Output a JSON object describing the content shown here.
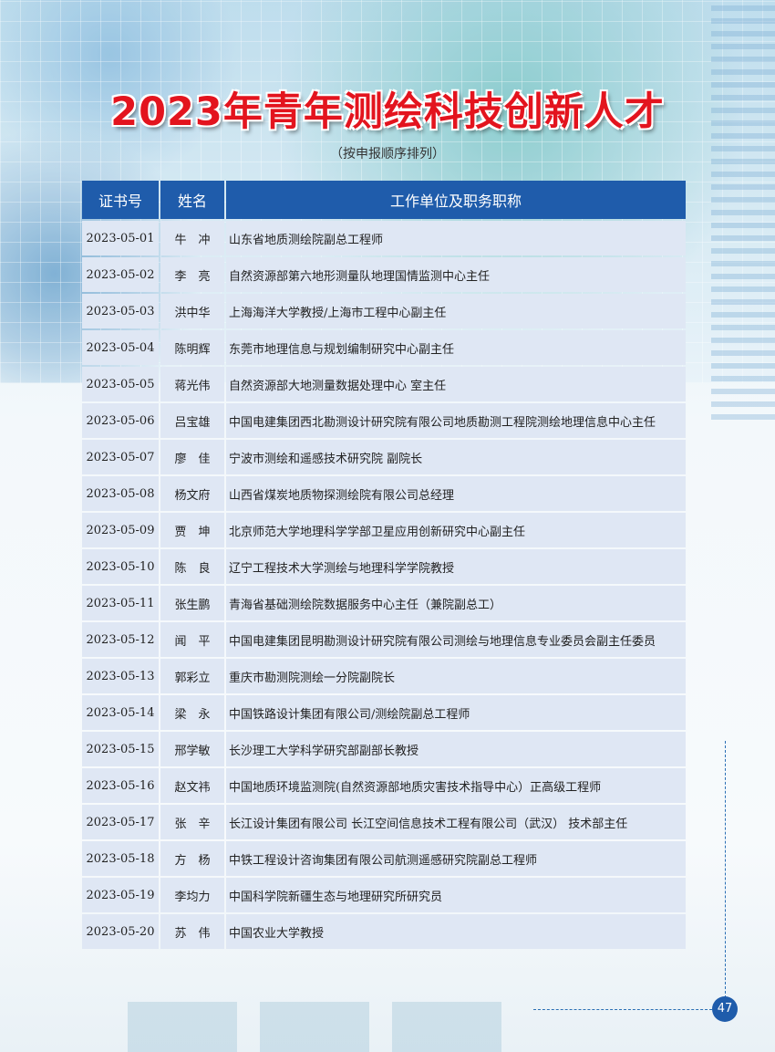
{
  "title": "2023年青年测绘科技创新人才",
  "subtitle": "（按申报顺序排列）",
  "table": {
    "headers": [
      "证书号",
      "姓名",
      "工作单位及职务职称"
    ],
    "rows": [
      [
        "2023-05-01",
        "牛　冲",
        "山东省地质测绘院副总工程师"
      ],
      [
        "2023-05-02",
        "李　亮",
        "自然资源部第六地形测量队地理国情监测中心主任"
      ],
      [
        "2023-05-03",
        "洪中华",
        "上海海洋大学教授/上海市工程中心副主任"
      ],
      [
        "2023-05-04",
        "陈明辉",
        "东莞市地理信息与规划编制研究中心副主任"
      ],
      [
        "2023-05-05",
        "蒋光伟",
        "自然资源部大地测量数据处理中心 室主任"
      ],
      [
        "2023-05-06",
        "吕宝雄",
        "中国电建集团西北勘测设计研究院有限公司地质勘测工程院测绘地理信息中心主任"
      ],
      [
        "2023-05-07",
        "廖　佳",
        "宁波市测绘和遥感技术研究院 副院长"
      ],
      [
        "2023-05-08",
        "杨文府",
        "山西省煤炭地质物探测绘院有限公司总经理"
      ],
      [
        "2023-05-09",
        "贾　坤",
        "北京师范大学地理科学学部卫星应用创新研究中心副主任"
      ],
      [
        "2023-05-10",
        "陈　良",
        "辽宁工程技术大学测绘与地理科学学院教授"
      ],
      [
        "2023-05-11",
        "张生鹏",
        "青海省基础测绘院数据服务中心主任（兼院副总工）"
      ],
      [
        "2023-05-12",
        "闻　平",
        "中国电建集团昆明勘测设计研究院有限公司测绘与地理信息专业委员会副主任委员"
      ],
      [
        "2023-05-13",
        "郭彩立",
        "重庆市勘测院测绘一分院副院长"
      ],
      [
        "2023-05-14",
        "梁　永",
        "中国铁路设计集团有限公司/测绘院副总工程师"
      ],
      [
        "2023-05-15",
        "邢学敏",
        "长沙理工大学科学研究部副部长教授"
      ],
      [
        "2023-05-16",
        "赵文祎",
        "中国地质环境监测院(自然资源部地质灾害技术指导中心）正高级工程师"
      ],
      [
        "2023-05-17",
        "张　辛",
        "长江设计集团有限公司 长江空间信息技术工程有限公司（武汉） 技术部主任"
      ],
      [
        "2023-05-18",
        "方　杨",
        "中铁工程设计咨询集团有限公司航测遥感研究院副总工程师"
      ],
      [
        "2023-05-19",
        "李均力",
        "中国科学院新疆生态与地理研究所研究员"
      ],
      [
        "2023-05-20",
        "苏　伟",
        "中国农业大学教授"
      ]
    ]
  },
  "page_number": "47",
  "colors": {
    "title": "#e3141e",
    "header_bg": "#1f5cab",
    "row_bg": "#dfe7f4"
  }
}
